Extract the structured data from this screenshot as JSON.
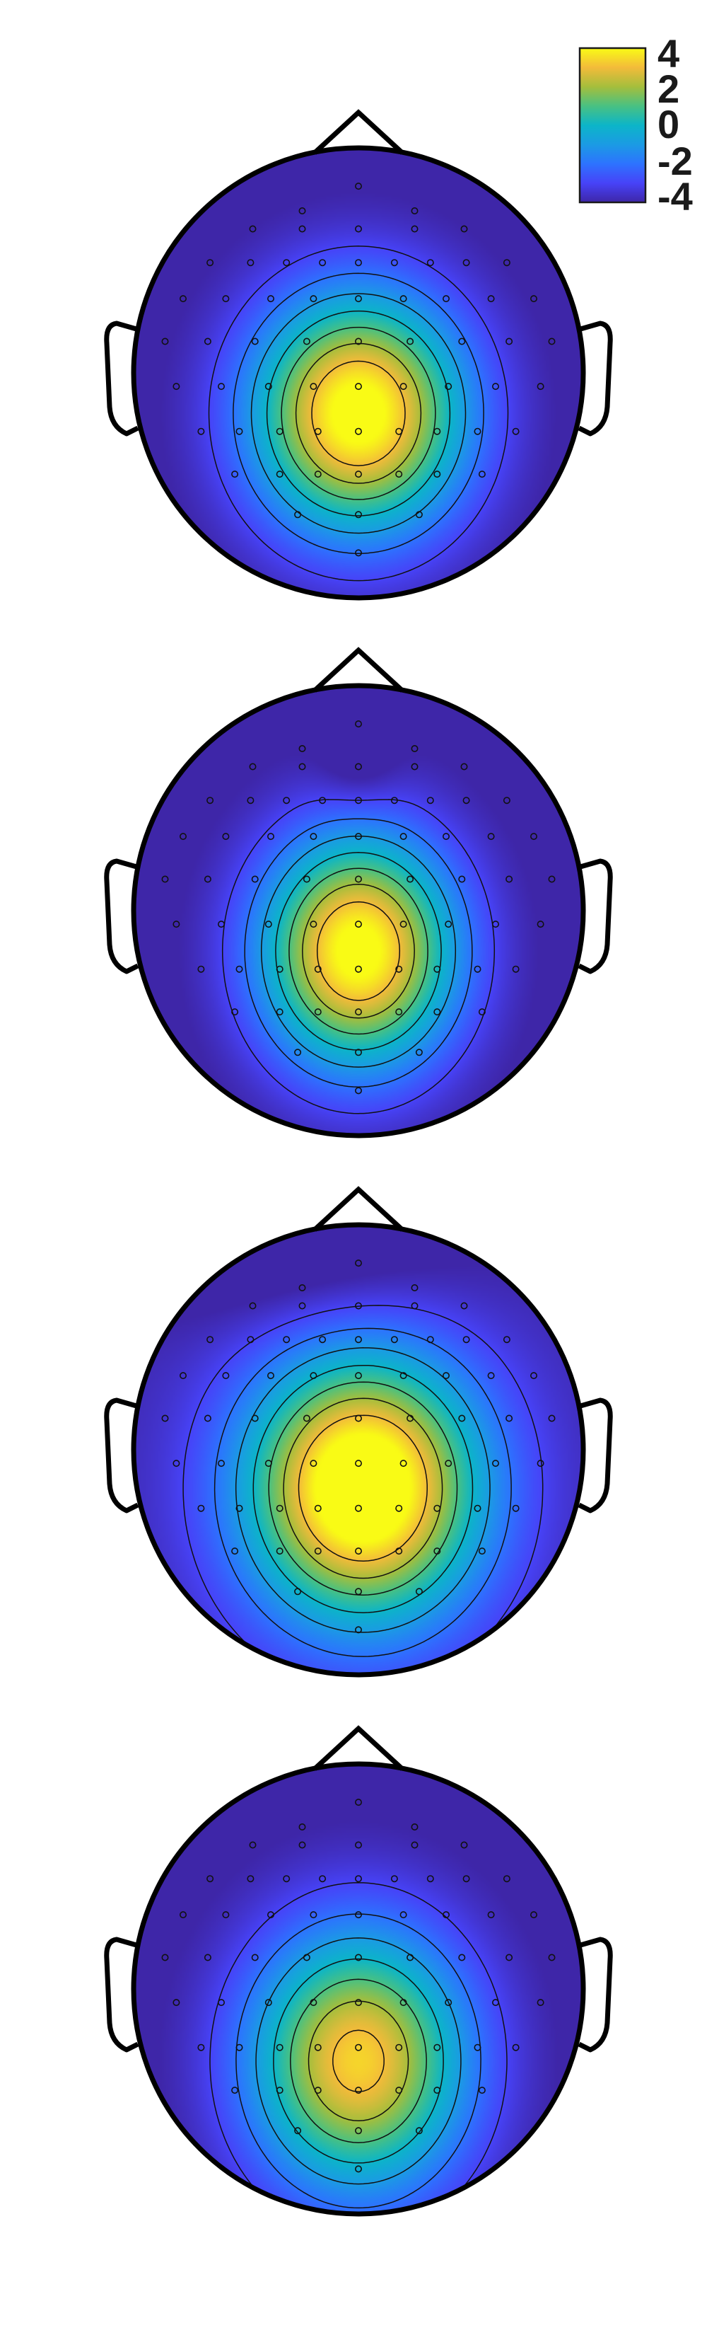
{
  "chart_data": {
    "type": "heatmap",
    "subtype": "eeg-scalp-topography",
    "title": "",
    "colormap": "parula",
    "colorbar": {
      "range": [
        -4,
        4
      ],
      "tick_values": [
        4,
        2,
        0,
        -2,
        -4
      ],
      "tick_labels": [
        "4",
        "2",
        "0",
        "-2",
        "-4"
      ],
      "placement": "top-right"
    },
    "contour_levels": [
      -3,
      -2,
      -1,
      0,
      1,
      2,
      3
    ],
    "electrode_layout_yfrac": [
      [
        -0.83,
        [
          0.0
        ]
      ],
      [
        -0.72,
        [
          -0.25,
          0.25
        ]
      ],
      [
        -0.64,
        [
          -0.47,
          -0.25,
          0.0,
          0.25,
          0.47
        ]
      ],
      [
        -0.49,
        [
          -0.66,
          -0.48,
          -0.32,
          -0.16,
          0.0,
          0.16,
          0.32,
          0.48,
          0.66
        ]
      ],
      [
        -0.33,
        [
          -0.78,
          -0.59,
          -0.39,
          -0.2,
          0.0,
          0.2,
          0.39,
          0.59,
          0.78
        ]
      ],
      [
        -0.14,
        [
          -0.86,
          -0.67,
          -0.46,
          -0.23,
          0.0,
          0.23,
          0.46,
          0.67,
          0.86
        ]
      ],
      [
        0.06,
        [
          -0.81,
          -0.61,
          -0.4,
          -0.2,
          0.0,
          0.2,
          0.4,
          0.61,
          0.81
        ]
      ],
      [
        0.26,
        [
          -0.7,
          -0.53,
          -0.35,
          -0.18,
          0.0,
          0.18,
          0.35,
          0.53,
          0.7
        ]
      ],
      [
        0.45,
        [
          -0.55,
          -0.35,
          -0.18,
          0.0,
          0.18,
          0.35,
          0.55
        ]
      ],
      [
        0.63,
        [
          -0.27,
          0.0,
          0.27
        ]
      ],
      [
        0.8,
        [
          0.0
        ]
      ]
    ],
    "maps": [
      {
        "baseline": -4.3,
        "peak_amplitude": 8.8,
        "peak_center": [
          0.0,
          0.18
        ],
        "peak_sigma": [
          0.34,
          0.38
        ],
        "frontal_offset": 0.0,
        "frontal_center": [
          0.0,
          -0.95
        ],
        "frontal_sigma": [
          0.7,
          0.2
        ],
        "notch": 0.0
      },
      {
        "baseline": -4.3,
        "peak_amplitude": 8.7,
        "peak_center": [
          0.0,
          0.18
        ],
        "peak_sigma": [
          0.31,
          0.37
        ],
        "frontal_offset": 0.0,
        "frontal_center": [
          0.0,
          -0.95
        ],
        "frontal_sigma": [
          0.7,
          0.2
        ],
        "notch": 0.8
      },
      {
        "baseline": -3.9,
        "peak_amplitude": 9.3,
        "peak_center": [
          0.02,
          0.17
        ],
        "peak_sigma": [
          0.37,
          0.42
        ],
        "frontal_offset": -1.1,
        "frontal_center": [
          -0.25,
          -0.9
        ],
        "frontal_sigma": [
          0.5,
          0.25
        ],
        "notch": 0.0
      },
      {
        "baseline": -4.3,
        "peak_amplitude": 7.7,
        "peak_center": [
          0.0,
          0.32
        ],
        "peak_sigma": [
          0.35,
          0.42
        ],
        "frontal_offset": 0.0,
        "frontal_center": [
          0.0,
          -0.95
        ],
        "frontal_sigma": [
          0.7,
          0.2
        ],
        "notch": 0.0
      }
    ]
  }
}
